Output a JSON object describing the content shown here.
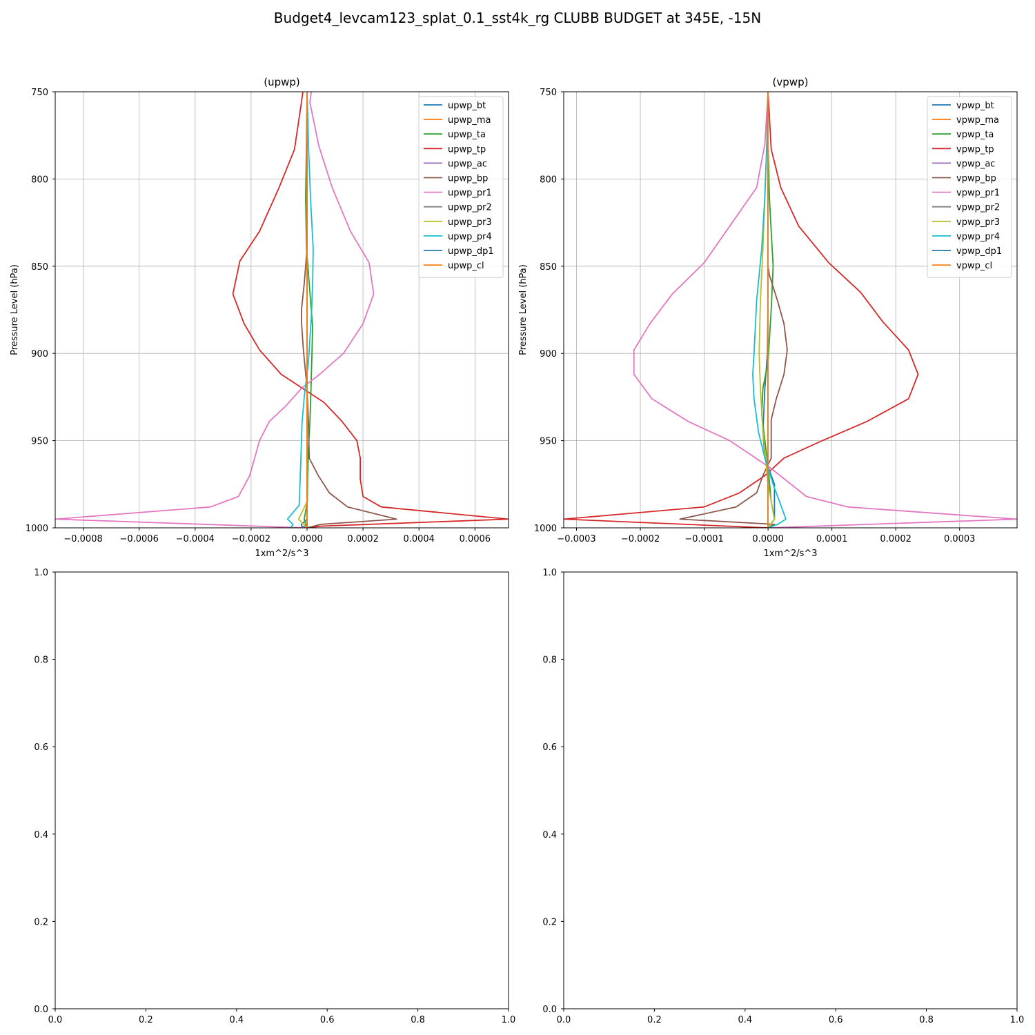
{
  "figure": {
    "suptitle": "Budget4_levcam123_splat_0.1_sst4k_rg CLUBB BUDGET at 345E, -15N"
  },
  "chart_data": [
    {
      "type": "line",
      "title": "(upwp)",
      "xlabel": "1xm^2/s^3",
      "ylabel": "Pressure Level (hPa)",
      "xlim": [
        -0.0009,
        0.00072
      ],
      "ylim": [
        1000,
        750
      ],
      "xticks": [
        -0.0008,
        -0.0006,
        -0.0004,
        -0.0002,
        0.0,
        0.0002,
        0.0004,
        0.0006
      ],
      "xtick_labels": [
        "−0.0008",
        "−0.0006",
        "−0.0004",
        "−0.0002",
        "0.0000",
        "0.0002",
        "0.0004",
        "0.0006"
      ],
      "yticks": [
        750,
        800,
        850,
        900,
        950,
        1000
      ],
      "ytick_labels": [
        "750",
        "800",
        "850",
        "900",
        "950",
        "1000"
      ],
      "grid": true,
      "legend": "top-right",
      "series": [
        {
          "name": "upwp_bt",
          "color": "#1f77b4",
          "x": [
            0,
            0,
            0,
            0,
            0,
            0,
            0,
            0,
            0,
            0,
            0,
            0,
            -2e-05,
            -2e-05,
            0
          ],
          "y": [
            750,
            780,
            810,
            840,
            870,
            900,
            920,
            945,
            960,
            975,
            990,
            995,
            998,
            999,
            1000
          ]
        },
        {
          "name": "upwp_ma",
          "color": "#ff7f0e",
          "x": [
            0,
            0,
            0,
            0,
            0,
            0,
            0,
            0,
            0,
            0,
            0,
            0,
            0,
            0
          ],
          "y": [
            750,
            780,
            810,
            840,
            870,
            900,
            920,
            945,
            960,
            975,
            985,
            995,
            998,
            1000
          ]
        },
        {
          "name": "upwp_ta",
          "color": "#2ca02c",
          "x": [
            0,
            -2e-06,
            -5e-06,
            -2e-06,
            3e-06,
            2e-05,
            1.5e-05,
            1e-05,
            5e-06,
            2e-06,
            1e-06,
            -1e-05,
            -5e-06,
            0
          ],
          "y": [
            750,
            780,
            810,
            840,
            850,
            885,
            915,
            940,
            955,
            970,
            985,
            995,
            998,
            1000
          ]
        },
        {
          "name": "upwp_tp",
          "color": "#d62728",
          "x": [
            -1.5e-05,
            -2e-05,
            -4.5e-05,
            -0.0001,
            -0.00017,
            -0.00024,
            -0.000265,
            -0.000225,
            -0.00017,
            -9.25e-05,
            6e-05,
            0.000125,
            0.000178,
            0.00019,
            0.00019,
            0.0002,
            0.000265,
            0.00072,
            5e-05,
            0
          ],
          "y": [
            750,
            756,
            783,
            805,
            830,
            847,
            866,
            883,
            898,
            912,
            928,
            939,
            950,
            960,
            972,
            982,
            988,
            995,
            999,
            1000
          ]
        },
        {
          "name": "upwp_ac",
          "color": "#9467bd",
          "x": [
            0,
            0,
            0,
            0,
            0,
            0,
            0,
            0,
            0,
            0,
            0,
            0,
            0,
            0
          ],
          "y": [
            750,
            780,
            810,
            840,
            870,
            900,
            920,
            945,
            960,
            975,
            985,
            995,
            998,
            1000
          ]
        },
        {
          "name": "upwp_bp",
          "color": "#8c564b",
          "x": [
            0,
            0,
            0,
            0,
            -1e-05,
            -2e-05,
            -2e-05,
            -1.3e-05,
            0,
            5e-06,
            8e-06,
            4e-05,
            8e-05,
            0.000145,
            0.00032,
            5e-05,
            0
          ],
          "y": [
            750,
            780,
            810,
            840,
            860,
            875,
            882,
            898,
            920,
            940,
            960,
            970,
            980,
            988,
            995,
            998,
            1000
          ]
        },
        {
          "name": "upwp_pr1",
          "color": "#e377c2",
          "x": [
            1.5e-05,
            1e-05,
            4.2e-05,
            9e-05,
            0.000155,
            0.000222,
            0.000238,
            0.0002,
            0.00013,
            4.5e-05,
            -2e-05,
            -7.5e-05,
            -0.000135,
            -0.00017,
            -0.000205,
            -0.000245,
            -0.000345,
            -0.0009,
            -5e-06
          ],
          "y": [
            750,
            756,
            781,
            805,
            830,
            848,
            866,
            883,
            900,
            912,
            920,
            930,
            939,
            950,
            970,
            982,
            988,
            995,
            1000
          ]
        },
        {
          "name": "upwp_pr2",
          "color": "#7f7f7f",
          "x": [
            0,
            0,
            0,
            0,
            0,
            0,
            0,
            0,
            0,
            0,
            0,
            0,
            0,
            0
          ],
          "y": [
            750,
            780,
            810,
            840,
            870,
            900,
            920,
            945,
            960,
            975,
            985,
            995,
            998,
            1000
          ]
        },
        {
          "name": "upwp_pr3",
          "color": "#bcbd22",
          "x": [
            0,
            0,
            0,
            0,
            0,
            0,
            0,
            0,
            0,
            0,
            0,
            -3e-05,
            0
          ],
          "y": [
            750,
            780,
            810,
            840,
            870,
            900,
            920,
            945,
            960,
            975,
            985,
            995,
            1000
          ]
        },
        {
          "name": "upwp_pr4",
          "color": "#17becf",
          "x": [
            0,
            5e-06,
            1.2e-05,
            2.2e-05,
            2e-05,
            1.5e-05,
            5e-06,
            -1e-05,
            -1.8e-05,
            -2e-05,
            -2.2e-05,
            -2.8e-05,
            -7e-05,
            -5e-05,
            -5.8e-05
          ],
          "y": [
            750,
            780,
            810,
            840,
            860,
            880,
            905,
            925,
            940,
            950,
            960,
            987,
            995,
            998,
            1000
          ]
        },
        {
          "name": "upwp_dp1",
          "color": "#1f77b4",
          "x": [
            0,
            0,
            0,
            0,
            0,
            0,
            0,
            0,
            0,
            0,
            0,
            0,
            0
          ],
          "y": [
            750,
            780,
            810,
            840,
            870,
            900,
            920,
            945,
            960,
            975,
            985,
            995,
            1000
          ]
        },
        {
          "name": "upwp_cl",
          "color": "#ff7f0e",
          "x": [
            0,
            0,
            0,
            0,
            0,
            0,
            0,
            0,
            0,
            0,
            0,
            0,
            0
          ],
          "y": [
            750,
            780,
            810,
            840,
            870,
            900,
            920,
            945,
            960,
            975,
            985,
            995,
            1000
          ]
        }
      ]
    },
    {
      "type": "line",
      "title": "(vpwp)",
      "xlabel": "1xm^2/s^3",
      "ylabel": "Pressure Level (hPa)",
      "xlim": [
        -0.00032,
        0.00039
      ],
      "ylim": [
        1000,
        750
      ],
      "xticks": [
        -0.0003,
        -0.0002,
        -0.0001,
        0.0,
        0.0001,
        0.0002,
        0.0003
      ],
      "xtick_labels": [
        "−0.0003",
        "−0.0002",
        "−0.0001",
        "0.0000",
        "0.0001",
        "0.0002",
        "0.0003"
      ],
      "yticks": [
        750,
        800,
        850,
        900,
        950,
        1000
      ],
      "ytick_labels": [
        "750",
        "800",
        "850",
        "900",
        "950",
        "1000"
      ],
      "grid": true,
      "legend": "top-right",
      "series": [
        {
          "name": "vpwp_bt",
          "color": "#1f77b4",
          "x": [
            0,
            0,
            0,
            0,
            0,
            -1e-06,
            -5e-06,
            -8e-06,
            -5e-06,
            1e-05,
            1e-05,
            0
          ],
          "y": [
            750,
            780,
            810,
            840,
            870,
            900,
            920,
            945,
            960,
            975,
            995,
            1000
          ]
        },
        {
          "name": "vpwp_ma",
          "color": "#ff7f0e",
          "x": [
            0,
            0,
            0,
            0,
            0,
            0,
            0,
            0,
            0,
            0,
            0,
            0,
            0
          ],
          "y": [
            750,
            780,
            810,
            840,
            870,
            900,
            920,
            945,
            960,
            975,
            985,
            995,
            1000
          ]
        },
        {
          "name": "vpwp_ta",
          "color": "#2ca02c",
          "x": [
            0,
            0,
            2e-06,
            5e-06,
            8e-06,
            5e-06,
            0,
            -8e-06,
            -1e-05,
            -5e-06,
            0,
            5e-06,
            1e-05,
            0
          ],
          "y": [
            750,
            780,
            810,
            830,
            850,
            875,
            905,
            920,
            935,
            950,
            965,
            985,
            995,
            1000
          ]
        },
        {
          "name": "vpwp_tp",
          "color": "#d62728",
          "x": [
            0,
            5e-06,
            2e-05,
            4.8e-05,
            9.5e-05,
            0.000145,
            0.00018,
            0.00022,
            0.000235,
            0.00022,
            0.000155,
            8.5e-05,
            2.5e-05,
            -5e-06,
            -4.5e-05,
            -0.0001,
            -0.00032,
            0
          ],
          "y": [
            750,
            783,
            805,
            827,
            848,
            865,
            882,
            898,
            912,
            926,
            939,
            950,
            960,
            970,
            980,
            988,
            995,
            1000
          ]
        },
        {
          "name": "vpwp_ac",
          "color": "#9467bd",
          "x": [
            0,
            0,
            0,
            0,
            0,
            0,
            0,
            0,
            0,
            0,
            0,
            0,
            0
          ],
          "y": [
            750,
            780,
            810,
            840,
            870,
            900,
            920,
            945,
            960,
            975,
            985,
            995,
            1000
          ]
        },
        {
          "name": "vpwp_bp",
          "color": "#8c564b",
          "x": [
            0,
            0,
            0,
            0,
            0,
            2e-06,
            1.5e-05,
            2.5e-05,
            3e-05,
            2.5e-05,
            1.3e-05,
            5e-06,
            5e-06,
            -8e-06,
            -1.8e-05,
            -5e-05,
            -0.000138,
            1e-05,
            0
          ],
          "y": [
            750,
            780,
            810,
            840,
            850,
            855,
            870,
            883,
            898,
            912,
            926,
            938,
            960,
            970,
            980,
            988,
            995,
            998,
            1000
          ]
        },
        {
          "name": "vpwp_pr1",
          "color": "#e377c2",
          "x": [
            0,
            -5e-06,
            -1.8e-05,
            -6e-05,
            -0.0001,
            -0.00015,
            -0.000185,
            -0.00021,
            -0.00021,
            -0.000182,
            -0.000125,
            -6e-05,
            5e-06,
            6e-05,
            0.000125,
            0.00039,
            0
          ],
          "y": [
            750,
            780,
            805,
            827,
            848,
            866,
            883,
            898,
            912,
            926,
            939,
            950,
            966,
            982,
            988,
            995,
            1000
          ]
        },
        {
          "name": "vpwp_pr2",
          "color": "#7f7f7f",
          "x": [
            0,
            0,
            0,
            0,
            0,
            0,
            0,
            0,
            0,
            0,
            0,
            0,
            0
          ],
          "y": [
            750,
            780,
            810,
            840,
            870,
            900,
            920,
            945,
            960,
            975,
            985,
            995,
            1000
          ]
        },
        {
          "name": "vpwp_pr3",
          "color": "#bcbd22",
          "x": [
            0,
            -2e-06,
            -5e-06,
            -8e-06,
            -1.2e-05,
            -1.4e-05,
            -1.2e-05,
            -8e-06,
            -4e-06,
            0,
            5e-06,
            1e-05,
            0
          ],
          "y": [
            750,
            780,
            810,
            840,
            870,
            900,
            920,
            945,
            960,
            975,
            985,
            995,
            1000
          ]
        },
        {
          "name": "vpwp_pr4",
          "color": "#17becf",
          "x": [
            0,
            -2e-06,
            -5e-06,
            -1e-05,
            -1.8e-05,
            -2.2e-05,
            -2.4e-05,
            -2.2e-05,
            -1.5e-05,
            -5e-06,
            8e-06,
            2.8e-05,
            1.5e-05,
            0
          ],
          "y": [
            750,
            780,
            810,
            840,
            870,
            900,
            912,
            926,
            945,
            960,
            975,
            995,
            998,
            1000
          ]
        },
        {
          "name": "vpwp_dp1",
          "color": "#1f77b4",
          "x": [
            0,
            0,
            0,
            0,
            0,
            0,
            0,
            0,
            0,
            0,
            0,
            0,
            0
          ],
          "y": [
            750,
            780,
            810,
            840,
            870,
            900,
            920,
            945,
            960,
            975,
            985,
            995,
            1000
          ]
        },
        {
          "name": "vpwp_cl",
          "color": "#ff7f0e",
          "x": [
            0,
            0,
            0,
            0,
            0,
            0,
            0,
            0,
            0,
            0,
            0,
            0,
            0
          ],
          "y": [
            750,
            780,
            810,
            840,
            870,
            900,
            920,
            945,
            960,
            975,
            985,
            995,
            1000
          ]
        }
      ]
    },
    {
      "type": "line",
      "title": "",
      "xlim": [
        0,
        1
      ],
      "ylim": [
        0,
        1
      ],
      "xticks": [
        0,
        0.2,
        0.4,
        0.6,
        0.8,
        1
      ],
      "xtick_labels": [
        "0.0",
        "0.2",
        "0.4",
        "0.6",
        "0.8",
        "1.0"
      ],
      "yticks": [
        0,
        0.2,
        0.4,
        0.6,
        0.8,
        1
      ],
      "ytick_labels": [
        "0.0",
        "0.2",
        "0.4",
        "0.6",
        "0.8",
        "1.0"
      ],
      "grid": false,
      "series": []
    },
    {
      "type": "line",
      "title": "",
      "xlim": [
        0,
        1
      ],
      "ylim": [
        0,
        1
      ],
      "xticks": [
        0,
        0.2,
        0.4,
        0.6,
        0.8,
        1
      ],
      "xtick_labels": [
        "0.0",
        "0.2",
        "0.4",
        "0.6",
        "0.8",
        "1.0"
      ],
      "yticks": [
        0,
        0.2,
        0.4,
        0.6,
        0.8,
        1
      ],
      "ytick_labels": [
        "0.0",
        "0.2",
        "0.4",
        "0.6",
        "0.8",
        "1.0"
      ],
      "grid": false,
      "series": []
    }
  ]
}
